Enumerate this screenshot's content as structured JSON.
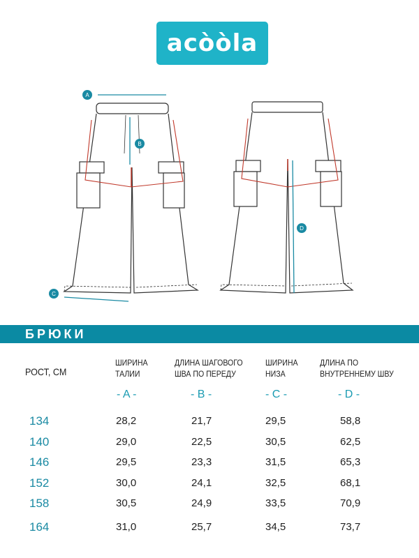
{
  "logo": {
    "text": "acòòla",
    "color": "#1fb3c8"
  },
  "diagram": {
    "markers": [
      "A",
      "B",
      "C",
      "D"
    ],
    "accent": "#1a8aa3",
    "seam_color": "#c0392b"
  },
  "section": {
    "title": "БРЮКИ",
    "color": "#0b8aa3"
  },
  "table": {
    "row_header": "РОСТ, СМ",
    "columns": [
      {
        "line1": "ШИРИНА",
        "line2": "ТАЛИИ",
        "letter": "- A -"
      },
      {
        "line1": "ДЛИНА ШАГОВОГО",
        "line2": "ШВА ПО ПЕРЕДУ",
        "letter": "- B -"
      },
      {
        "line1": "ШИРИНА",
        "line2": "НИЗА",
        "letter": "- C -"
      },
      {
        "line1": "ДЛИНА ПО",
        "line2": "ВНУТРЕННЕМУ ШВУ",
        "letter": "- D -"
      }
    ],
    "rows": [
      {
        "height": "134",
        "values": [
          "28,2",
          "21,7",
          "29,5",
          "58,8"
        ]
      },
      {
        "height": "140",
        "values": [
          "29,0",
          "22,5",
          "30,5",
          "62,5"
        ]
      },
      {
        "height": "146",
        "values": [
          "29,5",
          "23,3",
          "31,5",
          "65,3"
        ]
      },
      {
        "height": "152",
        "values": [
          "30,0",
          "24,1",
          "32,5",
          "68,1"
        ]
      },
      {
        "height": "158",
        "values": [
          "30,5",
          "24,9",
          "33,5",
          "70,9"
        ]
      },
      {
        "height": "164",
        "values": [
          "31,0",
          "25,7",
          "34,5",
          "73,7"
        ]
      }
    ]
  }
}
